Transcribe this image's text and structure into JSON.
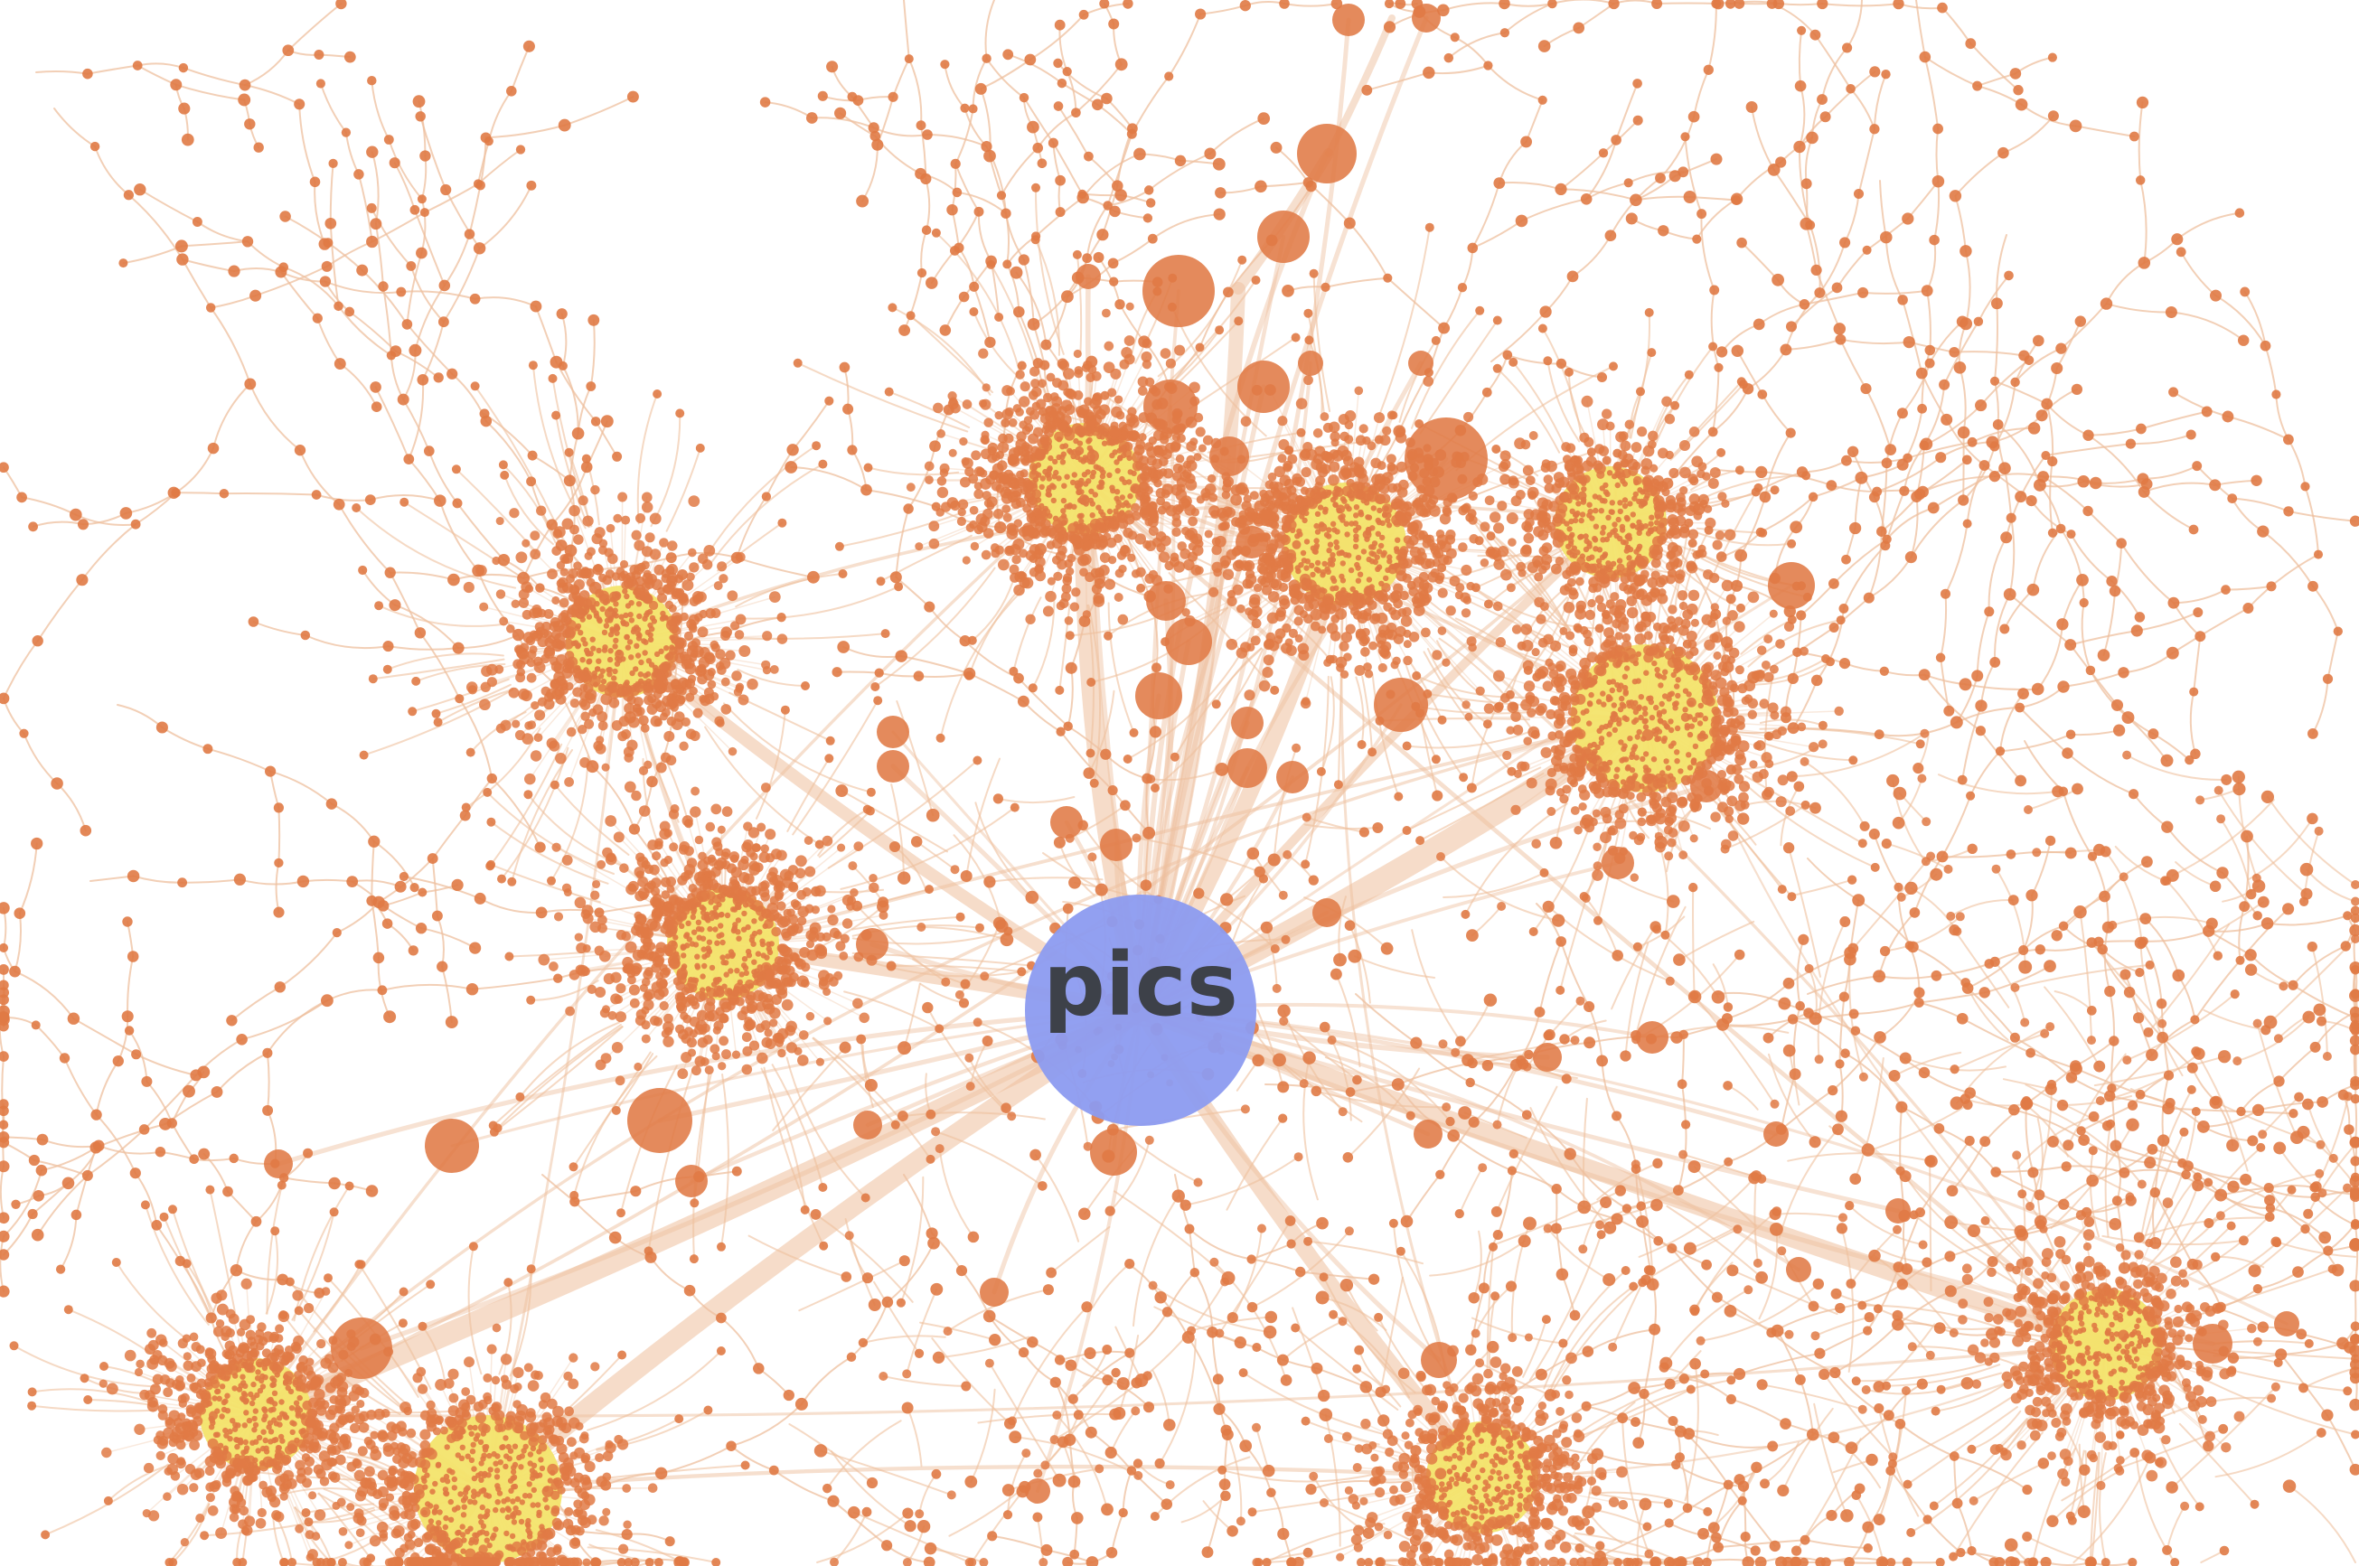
{
  "graph": {
    "center_label": "pics",
    "colors": {
      "background": "#ffffff",
      "edge": "#eebf9d",
      "node": "#e07a45",
      "hub": "#f3e46b",
      "center": "#8c9bf0",
      "center_label": "#3d4149"
    }
  }
}
